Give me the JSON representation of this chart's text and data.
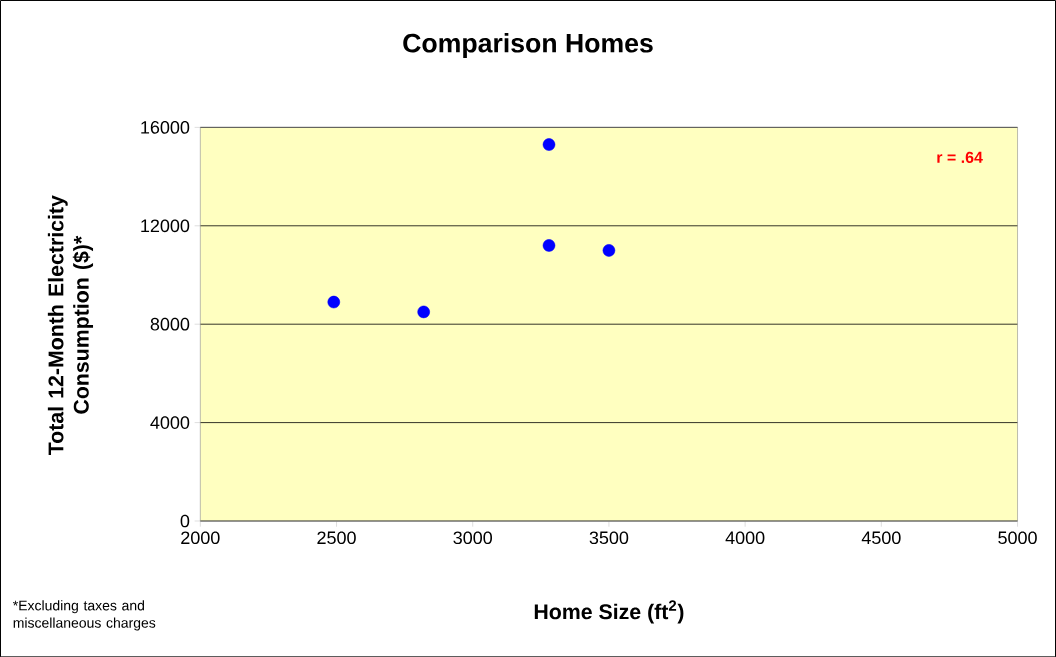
{
  "chart_data": {
    "type": "scatter",
    "title": "Comparison Homes",
    "xlabel": "Home Size (ft$^{2}$)",
    "ylabel": "Total 12-Month Electricity Consumption ($)*",
    "annotations": [
      "r = .64",
      "*Excluding taxes and miscellaneous charges"
    ],
    "x": [
      2490,
      2820,
      3280,
      3280,
      3500
    ],
    "series": [
      {
        "color": "#0000ff",
        "values": [
          8900,
          8500,
          15300,
          11200,
          11000
        ]
      }
    ],
    "xlim": [
      2000,
      5000
    ],
    "xticks": [
      2000,
      2500,
      3000,
      3500,
      4000,
      4500,
      5000
    ],
    "ylim": [
      0,
      16000
    ],
    "yticks": [
      0,
      4000,
      8000,
      12000,
      16000
    ],
    "grid": "y",
    "marker": "circle"
  }
}
